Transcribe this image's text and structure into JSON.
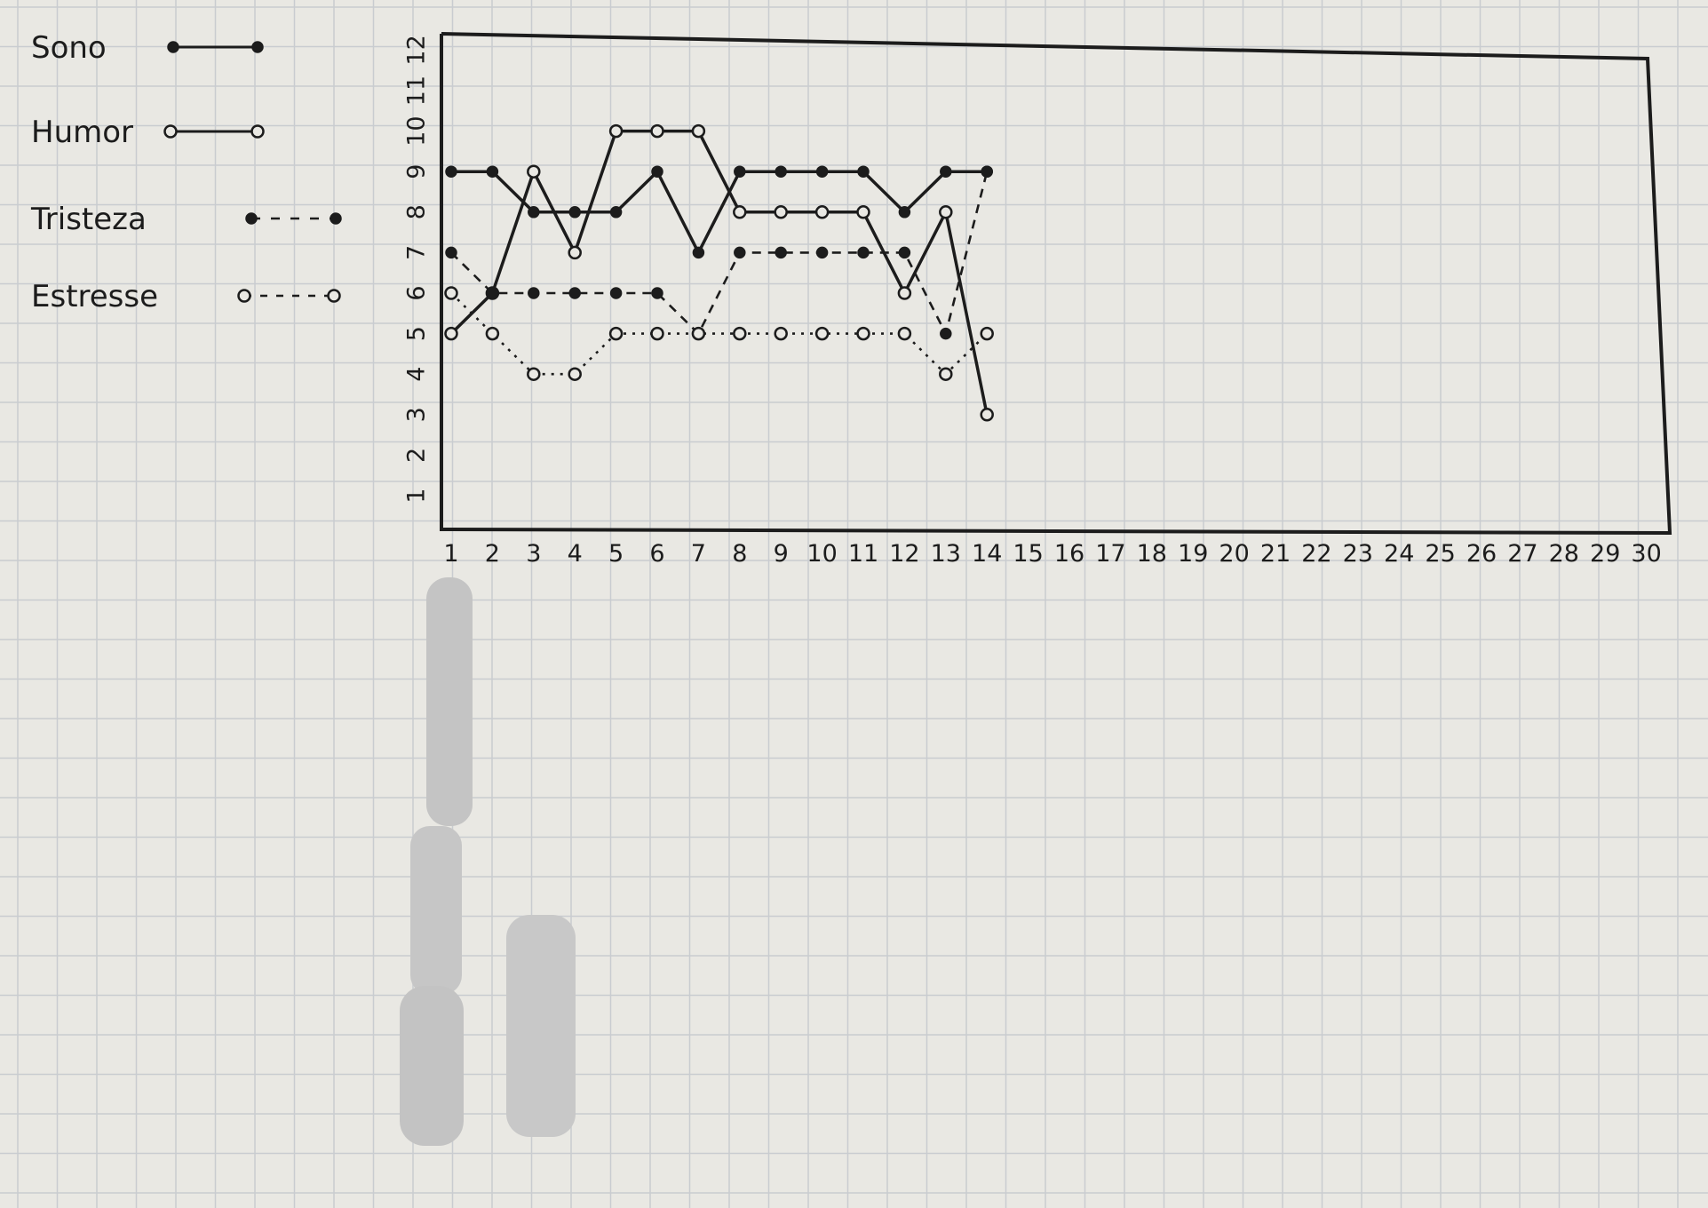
{
  "colors": {
    "paper": "#e9e8e3",
    "grid": "#c9ccd0",
    "ink": "#1c1c1c",
    "smudge": "#c4c4c4"
  },
  "chart_data": {
    "type": "line",
    "title": "",
    "xlabel": "",
    "ylabel": "",
    "x": [
      1,
      2,
      3,
      4,
      5,
      6,
      7,
      8,
      9,
      10,
      11,
      12,
      13,
      14,
      15,
      16,
      17,
      18,
      19,
      20,
      21,
      22,
      23,
      24,
      25,
      26,
      27,
      28,
      29,
      30
    ],
    "xlim": [
      1,
      30
    ],
    "ylim": [
      1,
      12
    ],
    "y_ticks": [
      1,
      2,
      3,
      4,
      5,
      6,
      7,
      8,
      9,
      10,
      11,
      12
    ],
    "grid": true,
    "legend_position": "top-left",
    "series": [
      {
        "name": "Sono",
        "style": "solid",
        "marker": "filled",
        "x": [
          1,
          2,
          3,
          4,
          5,
          6,
          7,
          8,
          9,
          10,
          11,
          12,
          13,
          14
        ],
        "values": [
          9,
          9,
          8,
          8,
          8,
          9,
          7,
          9,
          9,
          9,
          9,
          8,
          9,
          9
        ]
      },
      {
        "name": "Humor",
        "style": "solid",
        "marker": "open",
        "x": [
          1,
          2,
          3,
          4,
          5,
          6,
          7,
          8,
          9,
          10,
          11,
          12,
          13,
          14
        ],
        "values": [
          5,
          6,
          9,
          7,
          10,
          10,
          10,
          8,
          8,
          8,
          8,
          6,
          8,
          3
        ]
      },
      {
        "name": "Tristeza",
        "style": "dashed",
        "marker": "filled",
        "x": [
          1,
          2,
          3,
          4,
          5,
          6,
          7,
          8,
          9,
          10,
          11,
          12,
          13,
          14
        ],
        "values": [
          7,
          6,
          6,
          6,
          6,
          6,
          5,
          7,
          7,
          7,
          7,
          7,
          5,
          9
        ]
      },
      {
        "name": "Estresse",
        "style": "dotted",
        "marker": "open",
        "x": [
          1,
          2,
          3,
          4,
          5,
          6,
          7,
          8,
          9,
          10,
          11,
          12,
          13,
          14
        ],
        "values": [
          6,
          5,
          4,
          4,
          5,
          5,
          5,
          5,
          5,
          5,
          5,
          5,
          4,
          5
        ]
      }
    ]
  }
}
